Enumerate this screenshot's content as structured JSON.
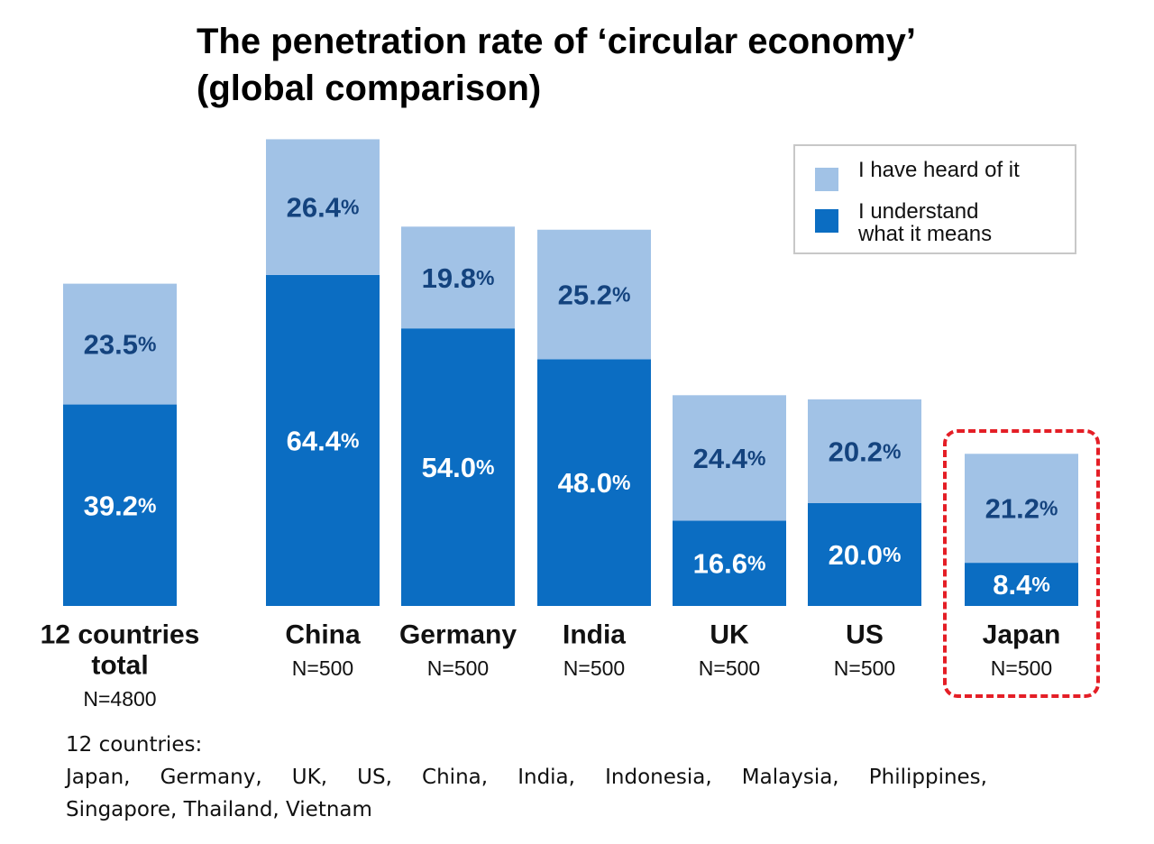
{
  "title": {
    "line1": "The penetration rate of ‘circular economy’",
    "line2": "(global comparison)"
  },
  "colors": {
    "heard": "#a1c2e6",
    "understand": "#0b6dc2",
    "heard_label": "#14437e",
    "understand_label": "#ffffff",
    "highlight": "#e41e26"
  },
  "legend": {
    "heard_label": "I have heard of it",
    "understand_line1": "I understand",
    "understand_line2": "what it means"
  },
  "chart_data": {
    "type": "bar",
    "stacked": true,
    "categories": [
      {
        "name_lines": [
          "12 countries",
          "total"
        ],
        "n": "N=4800"
      },
      {
        "name_lines": [
          "China"
        ],
        "n": "N=500"
      },
      {
        "name_lines": [
          "Germany"
        ],
        "n": "N=500"
      },
      {
        "name_lines": [
          "India"
        ],
        "n": "N=500"
      },
      {
        "name_lines": [
          "UK"
        ],
        "n": "N=500"
      },
      {
        "name_lines": [
          "US"
        ],
        "n": "N=500"
      },
      {
        "name_lines": [
          "Japan"
        ],
        "n": "N=500",
        "highlighted": true
      }
    ],
    "series": [
      {
        "name": "I understand what it means",
        "key": "understand",
        "values": [
          39.2,
          64.4,
          54.0,
          48.0,
          16.6,
          20.0,
          8.4
        ],
        "labels": [
          "39.2",
          "64.4",
          "54.0",
          "48.0",
          "16.6",
          "20.0",
          "8.4"
        ]
      },
      {
        "name": "I have heard of it",
        "key": "heard",
        "values": [
          23.5,
          26.4,
          19.8,
          25.2,
          24.4,
          20.2,
          21.2
        ],
        "labels": [
          "23.5",
          "26.4",
          "19.8",
          "25.2",
          "24.4",
          "20.2",
          "21.2"
        ]
      }
    ],
    "unit": "%",
    "ylim": [
      0,
      100
    ],
    "grid": false,
    "legend_position": "top-right"
  },
  "footnote": {
    "line1": "12 countries:",
    "line2_items": [
      "Japan,",
      "Germany,",
      "UK,",
      "US,",
      "China,",
      "India,",
      "Indonesia,",
      "Malaysia,",
      "Philippines,"
    ],
    "line3": "Singapore, Thailand, Vietnam"
  }
}
